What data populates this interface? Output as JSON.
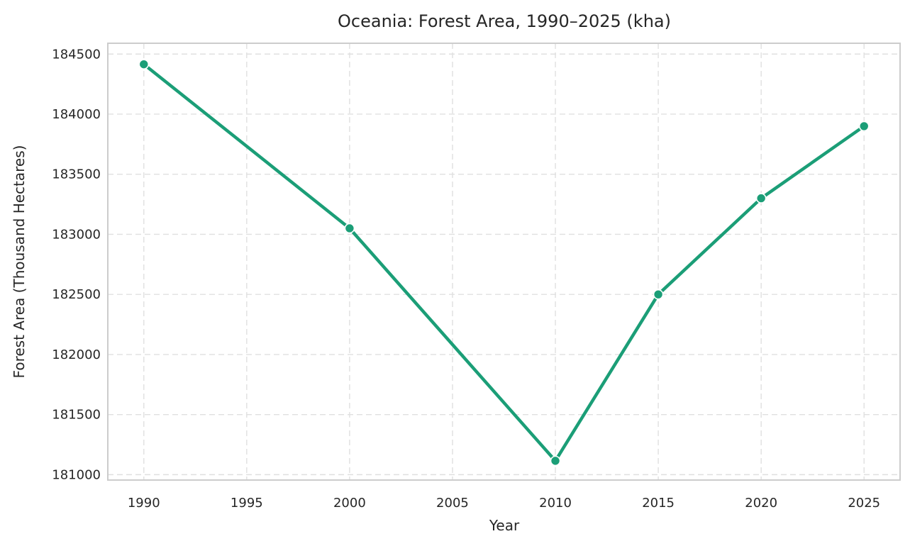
{
  "chart_data": {
    "type": "line",
    "title": "Oceania: Forest Area, 1990–2025 (kha)",
    "xlabel": "Year",
    "ylabel": "Forest Area (Thousand Hectares)",
    "x": [
      1990,
      2000,
      2010,
      2015,
      2020,
      2025
    ],
    "series": [
      {
        "values": [
          184415,
          183050,
          181115,
          182500,
          183300,
          183900
        ]
      }
    ],
    "xlim": [
      1988.25,
      2026.75
    ],
    "ylim": [
      180955,
      184590
    ],
    "xticks": [
      1990,
      1995,
      2000,
      2005,
      2010,
      2015,
      2020,
      2025
    ],
    "yticks": [
      181000,
      181500,
      182000,
      182500,
      183000,
      183500,
      184000,
      184500
    ],
    "grid": true,
    "line_color": "#1b9e77"
  }
}
